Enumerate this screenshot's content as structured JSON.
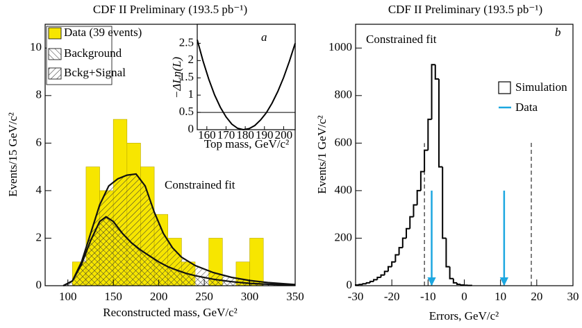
{
  "chart_data": [
    {
      "type": "histogram",
      "title": "CDF II Preliminary (193.5 pb⁻¹)",
      "annotation": "Constrained fit",
      "xlabel": "Reconstructed mass, GeV/c²",
      "ylabel": "Events/15 GeV/c²",
      "xlim": [
        75,
        350
      ],
      "ylim": [
        0,
        11
      ],
      "xticks": [
        100,
        150,
        200,
        250,
        300,
        350
      ],
      "yticks": [
        0,
        2,
        4,
        6,
        8,
        10
      ],
      "bins": [
        105,
        120,
        135,
        150,
        165,
        180,
        195,
        210,
        225,
        240,
        255,
        270,
        285,
        300,
        315
      ],
      "series": [
        {
          "name": "Data (39 events)",
          "color": "#f7e600",
          "values": [
            1,
            5,
            4,
            7,
            6,
            5,
            3,
            2,
            1,
            0,
            2,
            0,
            1,
            2
          ]
        }
      ],
      "curves": [
        {
          "name": "Background",
          "x": [
            95,
            105,
            115,
            125,
            135,
            142,
            150,
            160,
            170,
            180,
            190,
            200,
            210,
            220,
            230,
            240,
            260,
            280,
            300,
            320,
            350
          ],
          "values": [
            0,
            0.2,
            0.9,
            1.9,
            2.7,
            2.9,
            2.7,
            2.2,
            1.8,
            1.5,
            1.25,
            1.0,
            0.8,
            0.65,
            0.52,
            0.42,
            0.27,
            0.17,
            0.1,
            0.06,
            0.02
          ]
        },
        {
          "name": "Bckg+Signal",
          "x": [
            95,
            105,
            115,
            125,
            135,
            145,
            155,
            165,
            175,
            185,
            195,
            205,
            215,
            225,
            240,
            260,
            280,
            300,
            320,
            350
          ],
          "values": [
            0,
            0.2,
            1.0,
            2.2,
            3.4,
            4.2,
            4.5,
            4.65,
            4.7,
            4.2,
            3.1,
            2.2,
            1.6,
            1.2,
            0.85,
            0.55,
            0.35,
            0.22,
            0.13,
            0.05
          ]
        }
      ]
    },
    {
      "type": "line",
      "letter": "a",
      "xlabel": "Top mass, GeV/c²",
      "ylabel": "−ΔLn(L)",
      "xlim": [
        155,
        206
      ],
      "ylim": [
        0,
        3.05
      ],
      "xticks": [
        160,
        170,
        180,
        190,
        200
      ],
      "yticks": [
        0,
        0.5,
        1,
        1.5,
        2,
        2.5
      ],
      "x": [
        155,
        158,
        161,
        164,
        167,
        170,
        173,
        176,
        179,
        182,
        185,
        188,
        191,
        194,
        197,
        200,
        203,
        206
      ],
      "values": [
        2.6,
        1.99,
        1.46,
        1.01,
        0.65,
        0.37,
        0.16,
        0.04,
        0,
        0.03,
        0.12,
        0.28,
        0.49,
        0.77,
        1.11,
        1.51,
        1.98,
        2.5
      ],
      "hline": 0.5
    },
    {
      "type": "histogram",
      "title": "CDF II Preliminary (193.5 pb⁻¹)",
      "letter": "b",
      "annotation": "Constrained fit",
      "xlabel": "Errors, GeV/c²",
      "ylabel": "Events/1 GeV/c²",
      "xlim": [
        -30,
        30
      ],
      "ylim": [
        0,
        1100
      ],
      "xticks": [
        -30,
        -20,
        -10,
        0,
        10,
        20,
        30
      ],
      "yticks": [
        0,
        200,
        400,
        600,
        800,
        1000
      ],
      "bins": [
        -30,
        -29,
        -28,
        -27,
        -26,
        -25,
        -24,
        -23,
        -22,
        -21,
        -20,
        -19,
        -18,
        -17,
        -16,
        -15,
        -14,
        -13,
        -12,
        -11,
        -10,
        -9,
        -8,
        -7,
        -6,
        -5,
        -4,
        -3,
        -2,
        -1,
        0,
        1,
        2
      ],
      "series": [
        {
          "name": "Simulation",
          "color": "#000000",
          "values": [
            3,
            5,
            8,
            12,
            18,
            25,
            35,
            45,
            60,
            80,
            100,
            130,
            160,
            200,
            240,
            290,
            340,
            400,
            480,
            570,
            700,
            930,
            870,
            500,
            200,
            80,
            30,
            12,
            6,
            3,
            2,
            1
          ]
        }
      ],
      "markers": {
        "name": "Data",
        "color": "#1ca7e0",
        "x": [
          -9,
          11
        ],
        "values": [
          400,
          400
        ]
      },
      "vlines": {
        "x": [
          -11,
          18.5
        ],
        "values": [
          600,
          610
        ]
      }
    }
  ]
}
